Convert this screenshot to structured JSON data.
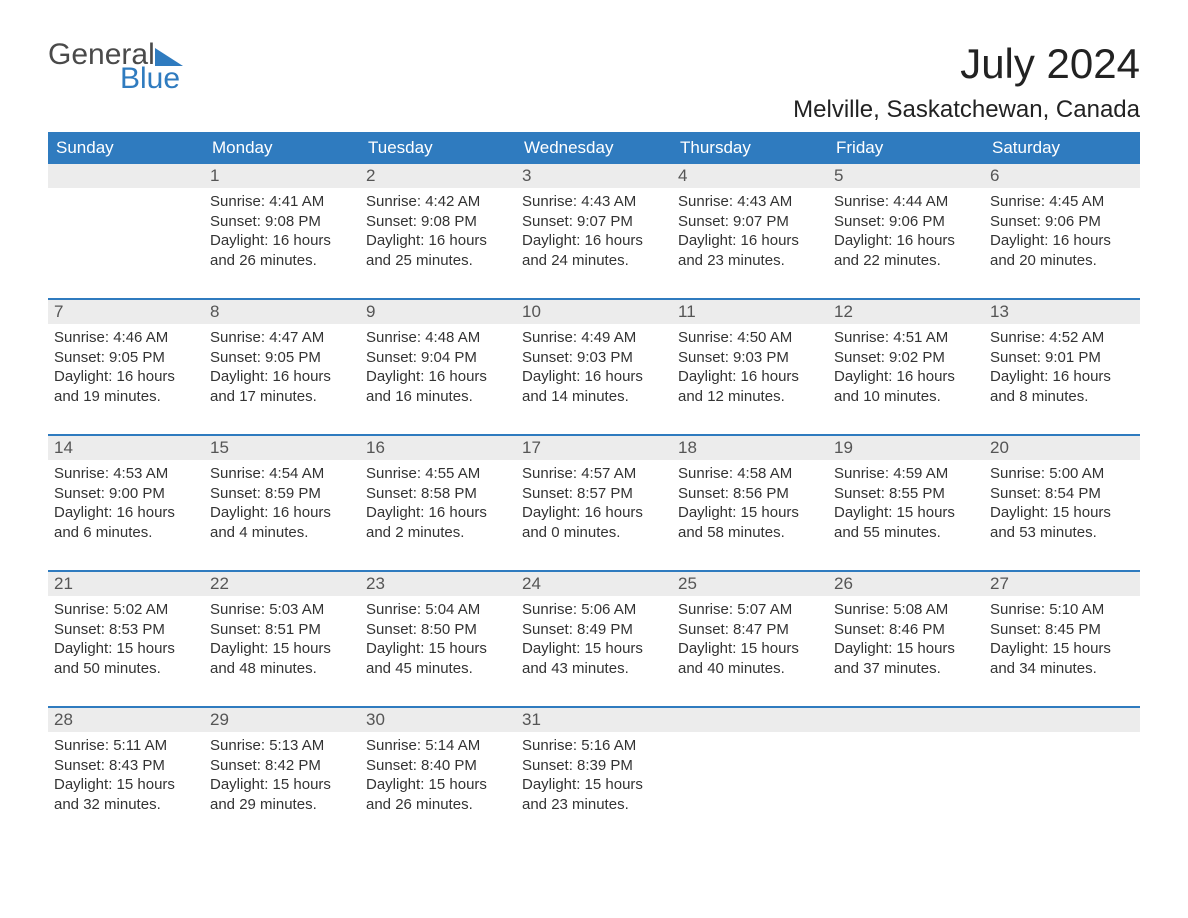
{
  "logo": {
    "word1": "General",
    "word2": "Blue"
  },
  "title": "July 2024",
  "location": "Melville, Saskatchewan, Canada",
  "colors": {
    "brand_blue": "#2f7bbf",
    "header_row_bg": "#ececec",
    "text": "#333333",
    "bg": "#ffffff"
  },
  "day_names": [
    "Sunday",
    "Monday",
    "Tuesday",
    "Wednesday",
    "Thursday",
    "Friday",
    "Saturday"
  ],
  "weeks": [
    [
      {
        "n": "",
        "sr": "",
        "ss": "",
        "d1": "",
        "d2": ""
      },
      {
        "n": "1",
        "sr": "Sunrise: 4:41 AM",
        "ss": "Sunset: 9:08 PM",
        "d1": "Daylight: 16 hours",
        "d2": "and 26 minutes."
      },
      {
        "n": "2",
        "sr": "Sunrise: 4:42 AM",
        "ss": "Sunset: 9:08 PM",
        "d1": "Daylight: 16 hours",
        "d2": "and 25 minutes."
      },
      {
        "n": "3",
        "sr": "Sunrise: 4:43 AM",
        "ss": "Sunset: 9:07 PM",
        "d1": "Daylight: 16 hours",
        "d2": "and 24 minutes."
      },
      {
        "n": "4",
        "sr": "Sunrise: 4:43 AM",
        "ss": "Sunset: 9:07 PM",
        "d1": "Daylight: 16 hours",
        "d2": "and 23 minutes."
      },
      {
        "n": "5",
        "sr": "Sunrise: 4:44 AM",
        "ss": "Sunset: 9:06 PM",
        "d1": "Daylight: 16 hours",
        "d2": "and 22 minutes."
      },
      {
        "n": "6",
        "sr": "Sunrise: 4:45 AM",
        "ss": "Sunset: 9:06 PM",
        "d1": "Daylight: 16 hours",
        "d2": "and 20 minutes."
      }
    ],
    [
      {
        "n": "7",
        "sr": "Sunrise: 4:46 AM",
        "ss": "Sunset: 9:05 PM",
        "d1": "Daylight: 16 hours",
        "d2": "and 19 minutes."
      },
      {
        "n": "8",
        "sr": "Sunrise: 4:47 AM",
        "ss": "Sunset: 9:05 PM",
        "d1": "Daylight: 16 hours",
        "d2": "and 17 minutes."
      },
      {
        "n": "9",
        "sr": "Sunrise: 4:48 AM",
        "ss": "Sunset: 9:04 PM",
        "d1": "Daylight: 16 hours",
        "d2": "and 16 minutes."
      },
      {
        "n": "10",
        "sr": "Sunrise: 4:49 AM",
        "ss": "Sunset: 9:03 PM",
        "d1": "Daylight: 16 hours",
        "d2": "and 14 minutes."
      },
      {
        "n": "11",
        "sr": "Sunrise: 4:50 AM",
        "ss": "Sunset: 9:03 PM",
        "d1": "Daylight: 16 hours",
        "d2": "and 12 minutes."
      },
      {
        "n": "12",
        "sr": "Sunrise: 4:51 AM",
        "ss": "Sunset: 9:02 PM",
        "d1": "Daylight: 16 hours",
        "d2": "and 10 minutes."
      },
      {
        "n": "13",
        "sr": "Sunrise: 4:52 AM",
        "ss": "Sunset: 9:01 PM",
        "d1": "Daylight: 16 hours",
        "d2": "and 8 minutes."
      }
    ],
    [
      {
        "n": "14",
        "sr": "Sunrise: 4:53 AM",
        "ss": "Sunset: 9:00 PM",
        "d1": "Daylight: 16 hours",
        "d2": "and 6 minutes."
      },
      {
        "n": "15",
        "sr": "Sunrise: 4:54 AM",
        "ss": "Sunset: 8:59 PM",
        "d1": "Daylight: 16 hours",
        "d2": "and 4 minutes."
      },
      {
        "n": "16",
        "sr": "Sunrise: 4:55 AM",
        "ss": "Sunset: 8:58 PM",
        "d1": "Daylight: 16 hours",
        "d2": "and 2 minutes."
      },
      {
        "n": "17",
        "sr": "Sunrise: 4:57 AM",
        "ss": "Sunset: 8:57 PM",
        "d1": "Daylight: 16 hours",
        "d2": "and 0 minutes."
      },
      {
        "n": "18",
        "sr": "Sunrise: 4:58 AM",
        "ss": "Sunset: 8:56 PM",
        "d1": "Daylight: 15 hours",
        "d2": "and 58 minutes."
      },
      {
        "n": "19",
        "sr": "Sunrise: 4:59 AM",
        "ss": "Sunset: 8:55 PM",
        "d1": "Daylight: 15 hours",
        "d2": "and 55 minutes."
      },
      {
        "n": "20",
        "sr": "Sunrise: 5:00 AM",
        "ss": "Sunset: 8:54 PM",
        "d1": "Daylight: 15 hours",
        "d2": "and 53 minutes."
      }
    ],
    [
      {
        "n": "21",
        "sr": "Sunrise: 5:02 AM",
        "ss": "Sunset: 8:53 PM",
        "d1": "Daylight: 15 hours",
        "d2": "and 50 minutes."
      },
      {
        "n": "22",
        "sr": "Sunrise: 5:03 AM",
        "ss": "Sunset: 8:51 PM",
        "d1": "Daylight: 15 hours",
        "d2": "and 48 minutes."
      },
      {
        "n": "23",
        "sr": "Sunrise: 5:04 AM",
        "ss": "Sunset: 8:50 PM",
        "d1": "Daylight: 15 hours",
        "d2": "and 45 minutes."
      },
      {
        "n": "24",
        "sr": "Sunrise: 5:06 AM",
        "ss": "Sunset: 8:49 PM",
        "d1": "Daylight: 15 hours",
        "d2": "and 43 minutes."
      },
      {
        "n": "25",
        "sr": "Sunrise: 5:07 AM",
        "ss": "Sunset: 8:47 PM",
        "d1": "Daylight: 15 hours",
        "d2": "and 40 minutes."
      },
      {
        "n": "26",
        "sr": "Sunrise: 5:08 AM",
        "ss": "Sunset: 8:46 PM",
        "d1": "Daylight: 15 hours",
        "d2": "and 37 minutes."
      },
      {
        "n": "27",
        "sr": "Sunrise: 5:10 AM",
        "ss": "Sunset: 8:45 PM",
        "d1": "Daylight: 15 hours",
        "d2": "and 34 minutes."
      }
    ],
    [
      {
        "n": "28",
        "sr": "Sunrise: 5:11 AM",
        "ss": "Sunset: 8:43 PM",
        "d1": "Daylight: 15 hours",
        "d2": "and 32 minutes."
      },
      {
        "n": "29",
        "sr": "Sunrise: 5:13 AM",
        "ss": "Sunset: 8:42 PM",
        "d1": "Daylight: 15 hours",
        "d2": "and 29 minutes."
      },
      {
        "n": "30",
        "sr": "Sunrise: 5:14 AM",
        "ss": "Sunset: 8:40 PM",
        "d1": "Daylight: 15 hours",
        "d2": "and 26 minutes."
      },
      {
        "n": "31",
        "sr": "Sunrise: 5:16 AM",
        "ss": "Sunset: 8:39 PM",
        "d1": "Daylight: 15 hours",
        "d2": "and 23 minutes."
      },
      {
        "n": "",
        "sr": "",
        "ss": "",
        "d1": "",
        "d2": ""
      },
      {
        "n": "",
        "sr": "",
        "ss": "",
        "d1": "",
        "d2": ""
      },
      {
        "n": "",
        "sr": "",
        "ss": "",
        "d1": "",
        "d2": ""
      }
    ]
  ]
}
